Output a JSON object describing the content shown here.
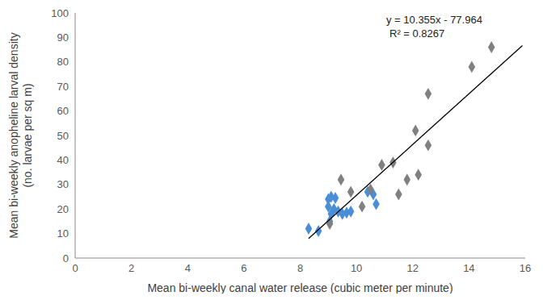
{
  "chart_data": {
    "type": "scatter",
    "xlabel": "Mean bi-weekly canal water release (cubic meter per minute)",
    "ylabel": [
      "Mean bi-weekly anopheline larval density",
      "(no. larvae per sq m)"
    ],
    "annotations": [
      "y = 10.355x - 77.964",
      "R² = 0.8267"
    ],
    "xlim": [
      0,
      16
    ],
    "xticks": [
      0,
      2,
      4,
      6,
      8,
      10,
      12,
      14,
      16
    ],
    "ylim": [
      0,
      100
    ],
    "yticks": [
      0,
      10,
      20,
      30,
      40,
      50,
      60,
      70,
      80,
      90,
      100
    ],
    "grid": false,
    "series": [
      {
        "type": "scatter",
        "color": "#4a8fd6",
        "marker": "diamond",
        "x": [
          8.3,
          8.65,
          9.0,
          9.1,
          9.25,
          9.0,
          9.1,
          9.2,
          9.35,
          9.5,
          9.65,
          9.8,
          10.4,
          10.6,
          10.7,
          9.05
        ],
        "values": [
          12,
          11,
          24,
          25,
          24.5,
          21,
          18,
          20,
          19,
          18,
          18.5,
          19,
          27,
          26,
          22,
          15
        ]
      },
      {
        "type": "scatter",
        "color": "#808080",
        "marker": "diamond",
        "x": [
          9.05,
          9.45,
          9.8,
          10.2,
          10.5,
          10.9,
          11.3,
          11.5,
          11.8,
          12.2,
          12.1,
          12.55,
          12.55,
          14.1,
          14.8
        ],
        "values": [
          14,
          32,
          27,
          21,
          28,
          38,
          39,
          26,
          32,
          34,
          52,
          46,
          67,
          78,
          86
        ]
      },
      {
        "type": "line",
        "color": "#000000",
        "line_style": "solid",
        "x": [
          8.3,
          15.9
        ],
        "values": [
          8.0,
          86.7
        ]
      }
    ]
  }
}
